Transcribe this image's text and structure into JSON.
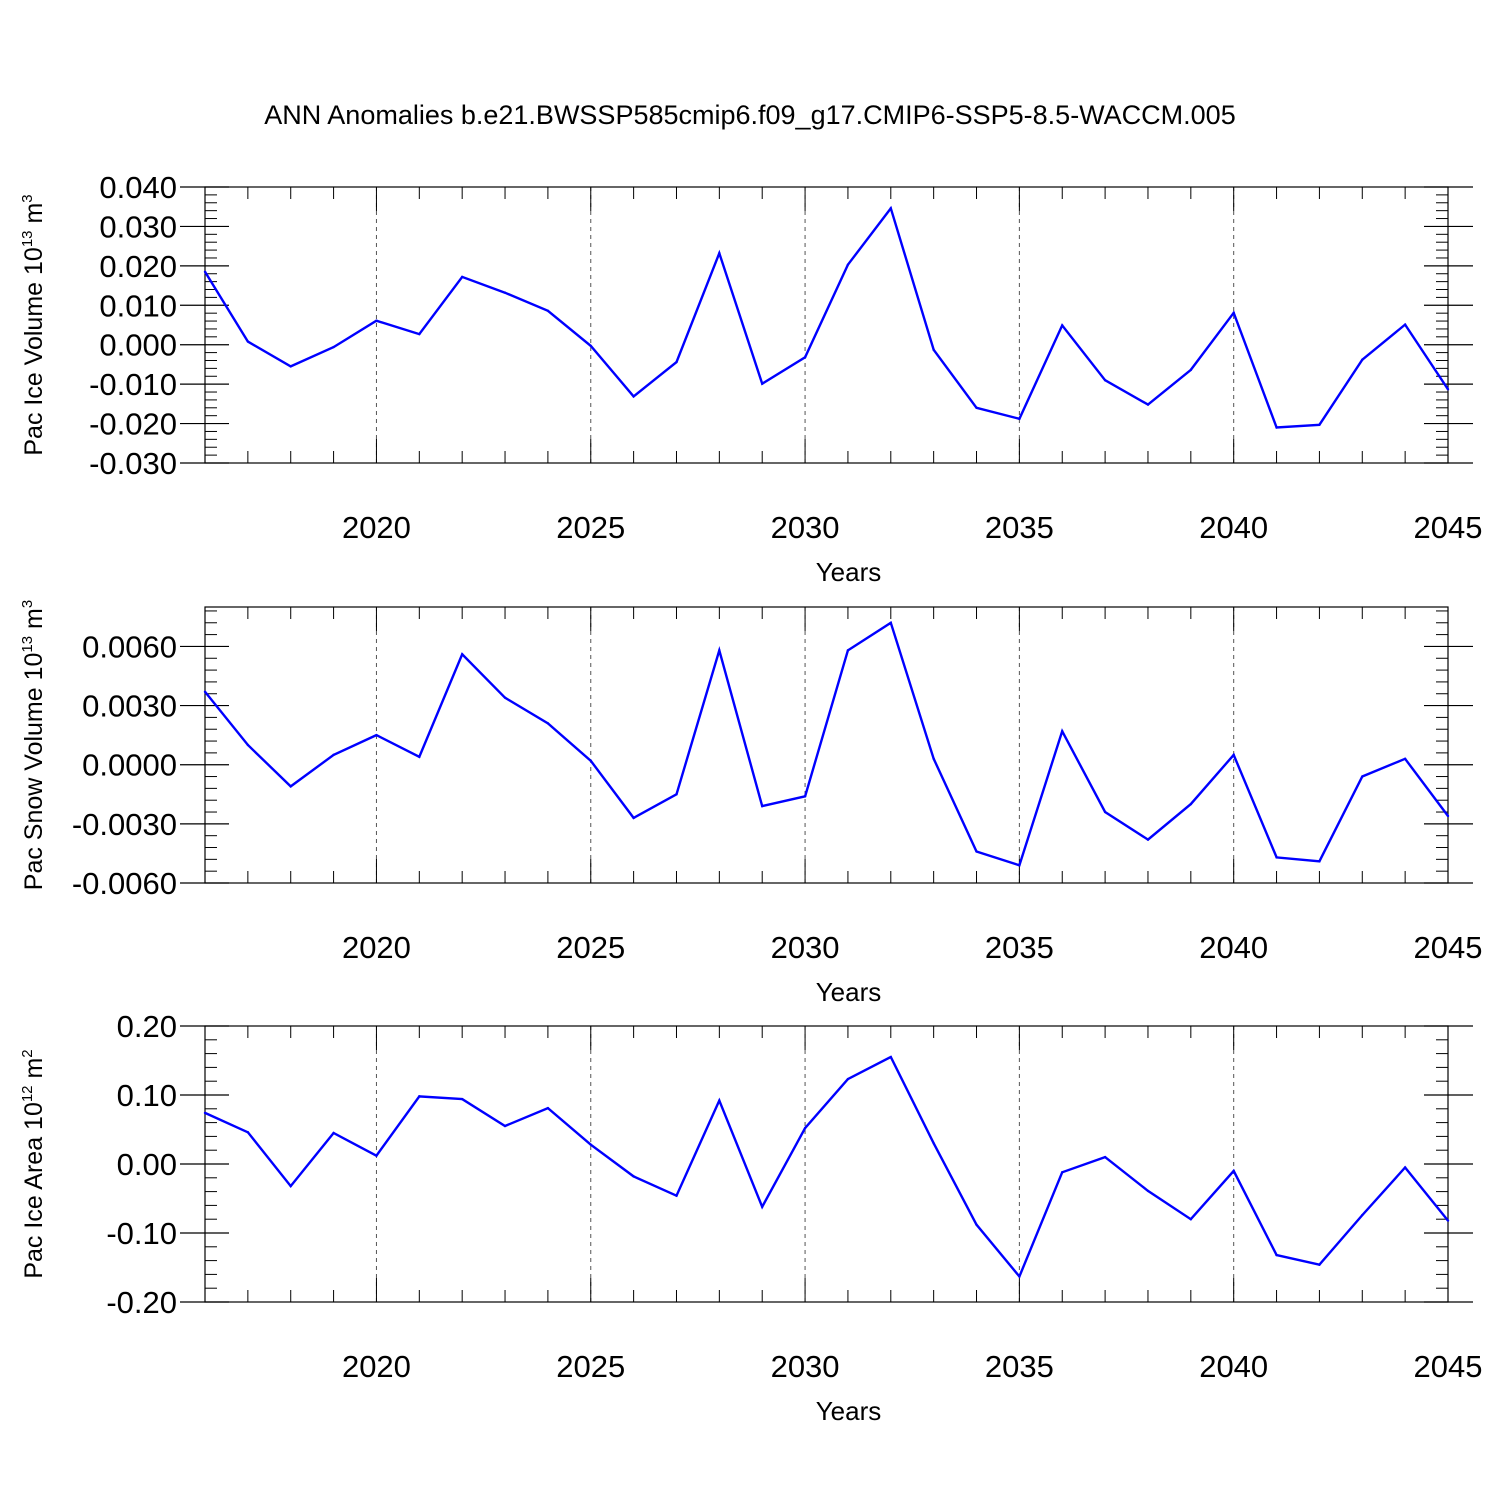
{
  "figure": {
    "title": "ANN Anomalies b.e21.BWSSP585cmip6.f09_g17.CMIP6-SSP5-8.5-WACCM.005"
  },
  "chart_data": [
    {
      "type": "line",
      "title": "ANN Anomalies b.e21.BWSSP585cmip6.f09_g17.CMIP6-SSP5-8.5-WACCM.005",
      "xlabel": "Years",
      "ylabel": {
        "text": "Pac Ice Volume 10",
        "sup1": "13",
        "mid": " m",
        "sup2": "3"
      },
      "xlim": [
        2016,
        2045
      ],
      "ylim": [
        -0.03,
        0.04
      ],
      "xticks": [
        2020,
        2025,
        2030,
        2035,
        2040,
        2045
      ],
      "xtick_labels": [
        "2020",
        "2025",
        "2030",
        "2035",
        "2040",
        "2045"
      ],
      "yticks": [
        -0.03,
        -0.02,
        -0.01,
        0.0,
        0.01,
        0.02,
        0.03,
        0.04
      ],
      "ytick_labels": [
        "-0.030",
        "-0.020",
        "-0.010",
        "0.000",
        "0.010",
        "0.020",
        "0.030",
        "0.040"
      ],
      "yminor_step": 0.002,
      "line_color": "#0000ff",
      "series": [
        {
          "name": "Pac Ice Volume",
          "x": [
            2016,
            2017,
            2018,
            2019,
            2020,
            2021,
            2022,
            2023,
            2024,
            2025,
            2026,
            2027,
            2028,
            2029,
            2030,
            2031,
            2032,
            2033,
            2034,
            2035,
            2036,
            2037,
            2038,
            2039,
            2040,
            2041,
            2042,
            2043,
            2044,
            2045
          ],
          "values": [
            0.0185,
            0.0008,
            -0.0055,
            -0.0006,
            0.0061,
            0.0027,
            0.0172,
            0.0132,
            0.0086,
            -0.0003,
            -0.0131,
            -0.0044,
            0.0232,
            -0.0099,
            -0.0032,
            0.0203,
            0.0346,
            -0.0013,
            -0.016,
            -0.0188,
            0.0049,
            -0.009,
            -0.0152,
            -0.0064,
            0.0081,
            -0.021,
            -0.0203,
            -0.0038,
            0.0051,
            -0.0113
          ]
        }
      ]
    },
    {
      "type": "line",
      "xlabel": "Years",
      "ylabel": {
        "text": "Pac Snow Volume 10",
        "sup1": "13",
        "mid": " m",
        "sup2": "3"
      },
      "xlim": [
        2016,
        2045
      ],
      "ylim": [
        -0.006,
        0.008
      ],
      "xticks": [
        2020,
        2025,
        2030,
        2035,
        2040,
        2045
      ],
      "xtick_labels": [
        "2020",
        "2025",
        "2030",
        "2035",
        "2040",
        "2045"
      ],
      "yticks": [
        -0.006,
        -0.003,
        0.0,
        0.003,
        0.006
      ],
      "ytick_labels": [
        "-0.0060",
        "-0.0030",
        "0.0000",
        "0.0030",
        "0.0060"
      ],
      "yminor_step": 0.0006,
      "line_color": "#0000ff",
      "series": [
        {
          "name": "Pac Snow Volume",
          "x": [
            2016,
            2017,
            2018,
            2019,
            2020,
            2021,
            2022,
            2023,
            2024,
            2025,
            2026,
            2027,
            2028,
            2029,
            2030,
            2031,
            2032,
            2033,
            2034,
            2035,
            2036,
            2037,
            2038,
            2039,
            2040,
            2041,
            2042,
            2043,
            2044,
            2045
          ],
          "values": [
            0.0037,
            0.001,
            -0.0011,
            0.0005,
            0.0015,
            0.0004,
            0.0056,
            0.0034,
            0.0021,
            0.0002,
            -0.0027,
            -0.0015,
            0.0058,
            -0.0021,
            -0.0016,
            0.0058,
            0.0072,
            0.0003,
            -0.0044,
            -0.0051,
            0.0017,
            -0.0024,
            -0.0038,
            -0.002,
            0.0005,
            -0.0047,
            -0.0049,
            -0.0006,
            0.0003,
            -0.0026
          ]
        }
      ]
    },
    {
      "type": "line",
      "xlabel": "Years",
      "ylabel": {
        "text": "Pac Ice Area 10",
        "sup1": "12",
        "mid": " m",
        "sup2": "2"
      },
      "xlim": [
        2016,
        2045
      ],
      "ylim": [
        -0.2,
        0.2
      ],
      "xticks": [
        2020,
        2025,
        2030,
        2035,
        2040,
        2045
      ],
      "xtick_labels": [
        "2020",
        "2025",
        "2030",
        "2035",
        "2040",
        "2045"
      ],
      "yticks": [
        -0.2,
        -0.1,
        0.0,
        0.1,
        0.2
      ],
      "ytick_labels": [
        "-0.20",
        "-0.10",
        "0.00",
        "0.10",
        "0.20"
      ],
      "yminor_step": 0.02,
      "line_color": "#0000ff",
      "series": [
        {
          "name": "Pac Ice Area",
          "x": [
            2016,
            2017,
            2018,
            2019,
            2020,
            2021,
            2022,
            2023,
            2024,
            2025,
            2026,
            2027,
            2028,
            2029,
            2030,
            2031,
            2032,
            2033,
            2034,
            2035,
            2036,
            2037,
            2038,
            2039,
            2040,
            2041,
            2042,
            2043,
            2044,
            2045
          ],
          "values": [
            0.074,
            0.046,
            -0.032,
            0.045,
            0.012,
            0.098,
            0.094,
            0.055,
            0.081,
            0.028,
            -0.018,
            -0.046,
            0.092,
            -0.062,
            0.052,
            0.123,
            0.155,
            0.03,
            -0.088,
            -0.163,
            -0.012,
            0.01,
            -0.039,
            -0.08,
            -0.01,
            -0.132,
            -0.146,
            -0.074,
            -0.005,
            -0.082
          ]
        }
      ]
    }
  ]
}
